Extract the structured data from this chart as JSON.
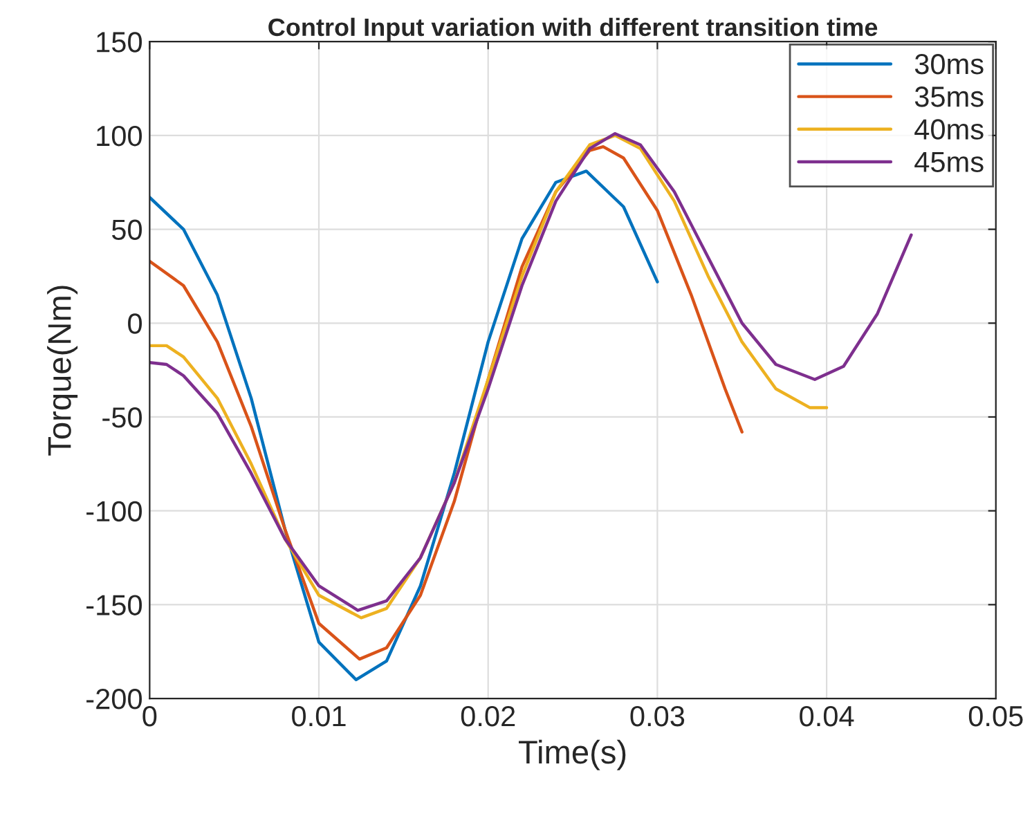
{
  "chart_data": {
    "type": "line",
    "title": "Control Input variation with different transition time",
    "xlabel": "Time(s)",
    "ylabel": "Torque(Nm)",
    "xlim": [
      0,
      0.05
    ],
    "xticks": [
      0,
      0.01,
      0.02,
      0.03,
      0.04,
      0.05
    ],
    "ylim": [
      -200,
      150
    ],
    "yticks": [
      -200,
      -150,
      -100,
      -50,
      0,
      50,
      100,
      150
    ],
    "grid": true,
    "legend": "top right",
    "marker": "none",
    "line_style": "solid",
    "series": [
      {
        "name": "30ms",
        "color": "#0072bd",
        "x": [
          0,
          0.002,
          0.004,
          0.006,
          0.008,
          0.01,
          0.0122,
          0.014,
          0.016,
          0.018,
          0.02,
          0.022,
          0.024,
          0.0258,
          0.028,
          0.03
        ],
        "values": [
          67,
          50,
          15,
          -40,
          -110,
          -170,
          -190,
          -180,
          -140,
          -80,
          -10,
          45,
          75,
          81,
          62,
          22
        ]
      },
      {
        "name": "35ms",
        "color": "#d95319",
        "x": [
          0,
          0.002,
          0.004,
          0.006,
          0.008,
          0.01,
          0.0124,
          0.014,
          0.016,
          0.018,
          0.02,
          0.022,
          0.024,
          0.026,
          0.0268,
          0.028,
          0.03,
          0.032,
          0.034,
          0.035
        ],
        "values": [
          33,
          20,
          -10,
          -55,
          -110,
          -160,
          -179,
          -173,
          -145,
          -95,
          -30,
          30,
          70,
          92,
          94,
          88,
          60,
          15,
          -35,
          -58
        ]
      },
      {
        "name": "40ms",
        "color": "#edb120",
        "x": [
          0,
          0.001,
          0.002,
          0.004,
          0.006,
          0.008,
          0.01,
          0.0125,
          0.014,
          0.016,
          0.018,
          0.02,
          0.022,
          0.024,
          0.026,
          0.0275,
          0.029,
          0.031,
          0.033,
          0.035,
          0.037,
          0.039,
          0.04
        ],
        "values": [
          -12,
          -12,
          -18,
          -40,
          -75,
          -115,
          -145,
          -157,
          -152,
          -125,
          -85,
          -30,
          25,
          70,
          95,
          100,
          93,
          65,
          25,
          -10,
          -35,
          -45,
          -45
        ]
      },
      {
        "name": "45ms",
        "color": "#7e2f8e",
        "x": [
          0,
          0.001,
          0.002,
          0.004,
          0.006,
          0.008,
          0.01,
          0.0123,
          0.014,
          0.016,
          0.018,
          0.02,
          0.022,
          0.024,
          0.026,
          0.0275,
          0.029,
          0.031,
          0.033,
          0.035,
          0.037,
          0.0393,
          0.041,
          0.043,
          0.045
        ],
        "values": [
          -21,
          -22,
          -28,
          -48,
          -80,
          -115,
          -140,
          -153,
          -148,
          -125,
          -85,
          -35,
          20,
          65,
          93,
          101,
          95,
          70,
          35,
          0,
          -22,
          -30,
          -23,
          5,
          47
        ]
      }
    ]
  }
}
